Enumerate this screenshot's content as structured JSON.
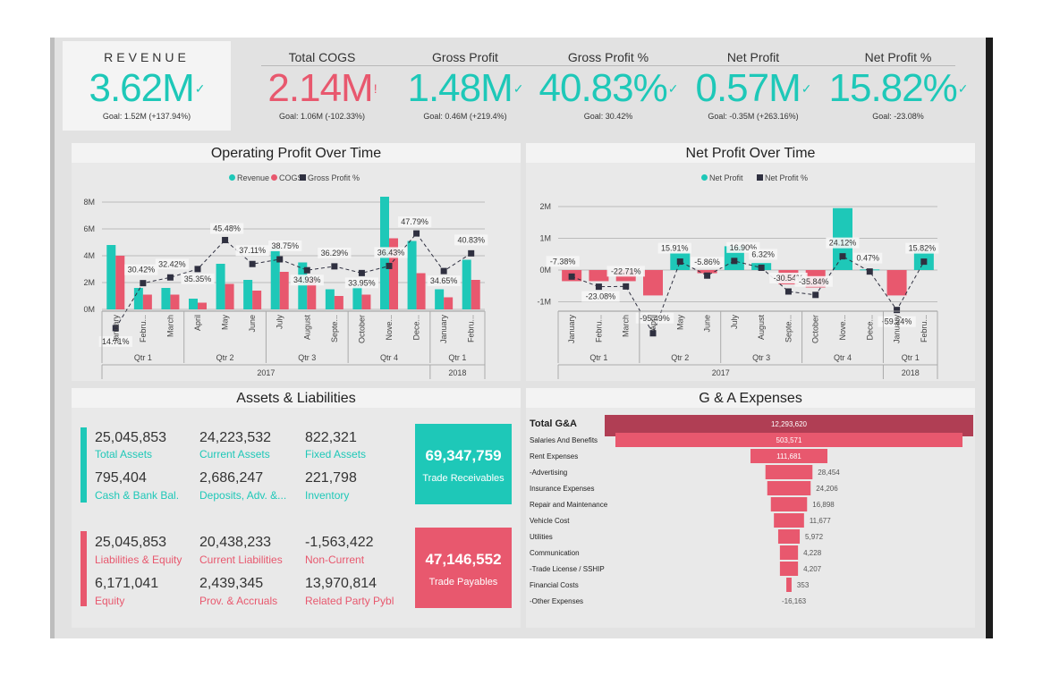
{
  "kpis": {
    "revenue": {
      "title": "REVENUE",
      "value": "3.62M",
      "goal": "Goal: 1.52M (+137.94%)"
    },
    "cogs": {
      "title": "Total COGS",
      "value": "2.14M",
      "goal": "Goal: 1.06M (-102.33%)"
    },
    "gross_profit": {
      "title": "Gross Profit",
      "value": "1.48M",
      "goal": "Goal: 0.46M (+219.4%)"
    },
    "gross_profit_pct": {
      "title": "Gross Profit %",
      "value": "40.83%",
      "goal": "Goal: 30.42%"
    },
    "net_profit": {
      "title": "Net Profit",
      "value": "0.57M",
      "goal": "Goal: -0.35M (+263.16%)"
    },
    "net_profit_pct": {
      "title": "Net Profit %",
      "value": "15.82%",
      "goal": "Goal: -23.08%"
    }
  },
  "colors": {
    "teal": "#1ec8b8",
    "red": "#e8586e",
    "dark_red": "#b03e54",
    "dark": "#2f3040"
  },
  "panels": {
    "operating_title": "Operating Profit Over Time",
    "net_title": "Net Profit Over Time",
    "assets_title": "Assets & Liabilities",
    "ga_title": "G & A Expenses"
  },
  "chart_data": [
    {
      "type": "bar",
      "title": "Operating Profit Over Time",
      "legend": [
        "Revenue",
        "COGS",
        "Gross Profit %"
      ],
      "legend_placement": "top",
      "categories": [
        "January",
        "Febru...",
        "March",
        "April",
        "May",
        "June",
        "July",
        "August",
        "Septe...",
        "October",
        "Nove...",
        "Dece...",
        "January",
        "Febru..."
      ],
      "quarters": [
        "Qtr 1",
        "Qtr 2",
        "Qtr 3",
        "Qtr 4",
        "Qtr 1"
      ],
      "years": [
        "2017",
        "2018"
      ],
      "y_ticks": [
        "8M",
        "6M",
        "4M",
        "2M",
        "0M"
      ],
      "ylim": [
        0,
        8.5
      ],
      "series": [
        {
          "name": "Revenue",
          "values": [
            4.8,
            1.6,
            1.6,
            0.8,
            3.4,
            2.2,
            4.5,
            3.5,
            1.5,
            1.7,
            8.4,
            5.1,
            1.5,
            3.7
          ]
        },
        {
          "name": "COGS",
          "values": [
            4.0,
            1.1,
            1.1,
            0.5,
            1.9,
            1.4,
            2.8,
            2.3,
            1.0,
            1.1,
            5.3,
            2.7,
            0.9,
            2.2
          ]
        },
        {
          "name": "Gross Profit %",
          "values": [
            14.71,
            30.42,
            32.42,
            35.35,
            45.48,
            37.11,
            38.75,
            34.93,
            36.29,
            33.95,
            36.43,
            47.79,
            34.65,
            40.83
          ],
          "labels": [
            "14.71%",
            "30.42%",
            "32.42%",
            "35.35%",
            "45.48%",
            "37.11%",
            "38.75%",
            "34.93%",
            "36.29%",
            "33.95%",
            "36.43%",
            "47.79%",
            "34.65%",
            "40.83%"
          ]
        }
      ]
    },
    {
      "type": "bar",
      "title": "Net Profit Over Time",
      "legend": [
        "Net Profit",
        "Net Profit %"
      ],
      "legend_placement": "top",
      "categories": [
        "January",
        "Febru...",
        "March",
        "April",
        "May",
        "June",
        "July",
        "August",
        "Septe...",
        "October",
        "Nove...",
        "Dece...",
        "January",
        "Febru..."
      ],
      "quarters": [
        "Qtr 1",
        "Qtr 2",
        "Qtr 3",
        "Qtr 4",
        "Qtr 1"
      ],
      "years": [
        "2017",
        "2018"
      ],
      "y_ticks": [
        "2M",
        "1M",
        "0M",
        "-1M"
      ],
      "ylim": [
        -1.2,
        2.4
      ],
      "series": [
        {
          "name": "Net Profit",
          "values": [
            -0.35,
            -0.35,
            -0.35,
            -0.8,
            0.55,
            -0.1,
            0.75,
            0.22,
            -0.45,
            -0.55,
            1.95,
            0.02,
            -0.8,
            0.57
          ]
        },
        {
          "name": "Net Profit %",
          "values": [
            -7.38,
            -23.08,
            -22.71,
            -95.49,
            15.91,
            -5.86,
            16.9,
            6.32,
            -30.54,
            -35.84,
            24.12,
            0.47,
            -59.24,
            15.82
          ],
          "labels": [
            "-7.38%",
            "-23.08%",
            "-22.71%",
            "-95.49%",
            "15.91%",
            "-5.86%",
            "16.90%",
            "6.32%",
            "-30.54%",
            "-35.84%",
            "24.12%",
            "0.47%",
            "-59.24%",
            "15.82%"
          ]
        }
      ]
    },
    {
      "type": "bar",
      "title": "G & A Expenses",
      "orientation": "horizontal-funnel",
      "categories": [
        "Total G&A",
        "Salaries And Benefits",
        "Rent Expenses",
        "-Advertising",
        "Insurance Expenses",
        "Repair and Maintenance",
        "Vehicle Cost",
        "Utilities",
        "Communication",
        "-Trade License / SSHIP",
        "Financial Costs",
        "-Other Expenses"
      ],
      "values": [
        12293620,
        503571,
        111681,
        28454,
        24206,
        16898,
        11677,
        5972,
        4228,
        4207,
        353,
        -16163
      ],
      "labels": [
        "12,293,620",
        "503,571",
        "111,681",
        "28,454",
        "24,206",
        "16,898",
        "11,677",
        "5,972",
        "4,228",
        "4,207",
        "353",
        "-16,163"
      ]
    }
  ],
  "assets": {
    "row1": [
      {
        "value": "25,045,853",
        "label": "Total Assets"
      },
      {
        "value": "24,223,532",
        "label": "Current Assets"
      },
      {
        "value": "822,321",
        "label": "Fixed Assets"
      }
    ],
    "row2": [
      {
        "value": "795,404",
        "label": "Cash & Bank Bal."
      },
      {
        "value": "2,686,247",
        "label": "Deposits, Adv. &..."
      },
      {
        "value": "221,798",
        "label": "Inventory"
      }
    ],
    "box": {
      "value": "69,347,759",
      "label": "Trade Receivables"
    }
  },
  "liabilities": {
    "row1": [
      {
        "value": "25,045,853",
        "label": "Liabilities & Equity"
      },
      {
        "value": "20,438,233",
        "label": "Current Liabilities"
      },
      {
        "value": "-1,563,422",
        "label": "Non-Current"
      }
    ],
    "row2": [
      {
        "value": "6,171,041",
        "label": "Equity"
      },
      {
        "value": "2,439,345",
        "label": "Prov. & Accruals"
      },
      {
        "value": "13,970,814",
        "label": "Related Party Pybl"
      }
    ],
    "box": {
      "value": "47,146,552",
      "label": "Trade Payables"
    }
  }
}
